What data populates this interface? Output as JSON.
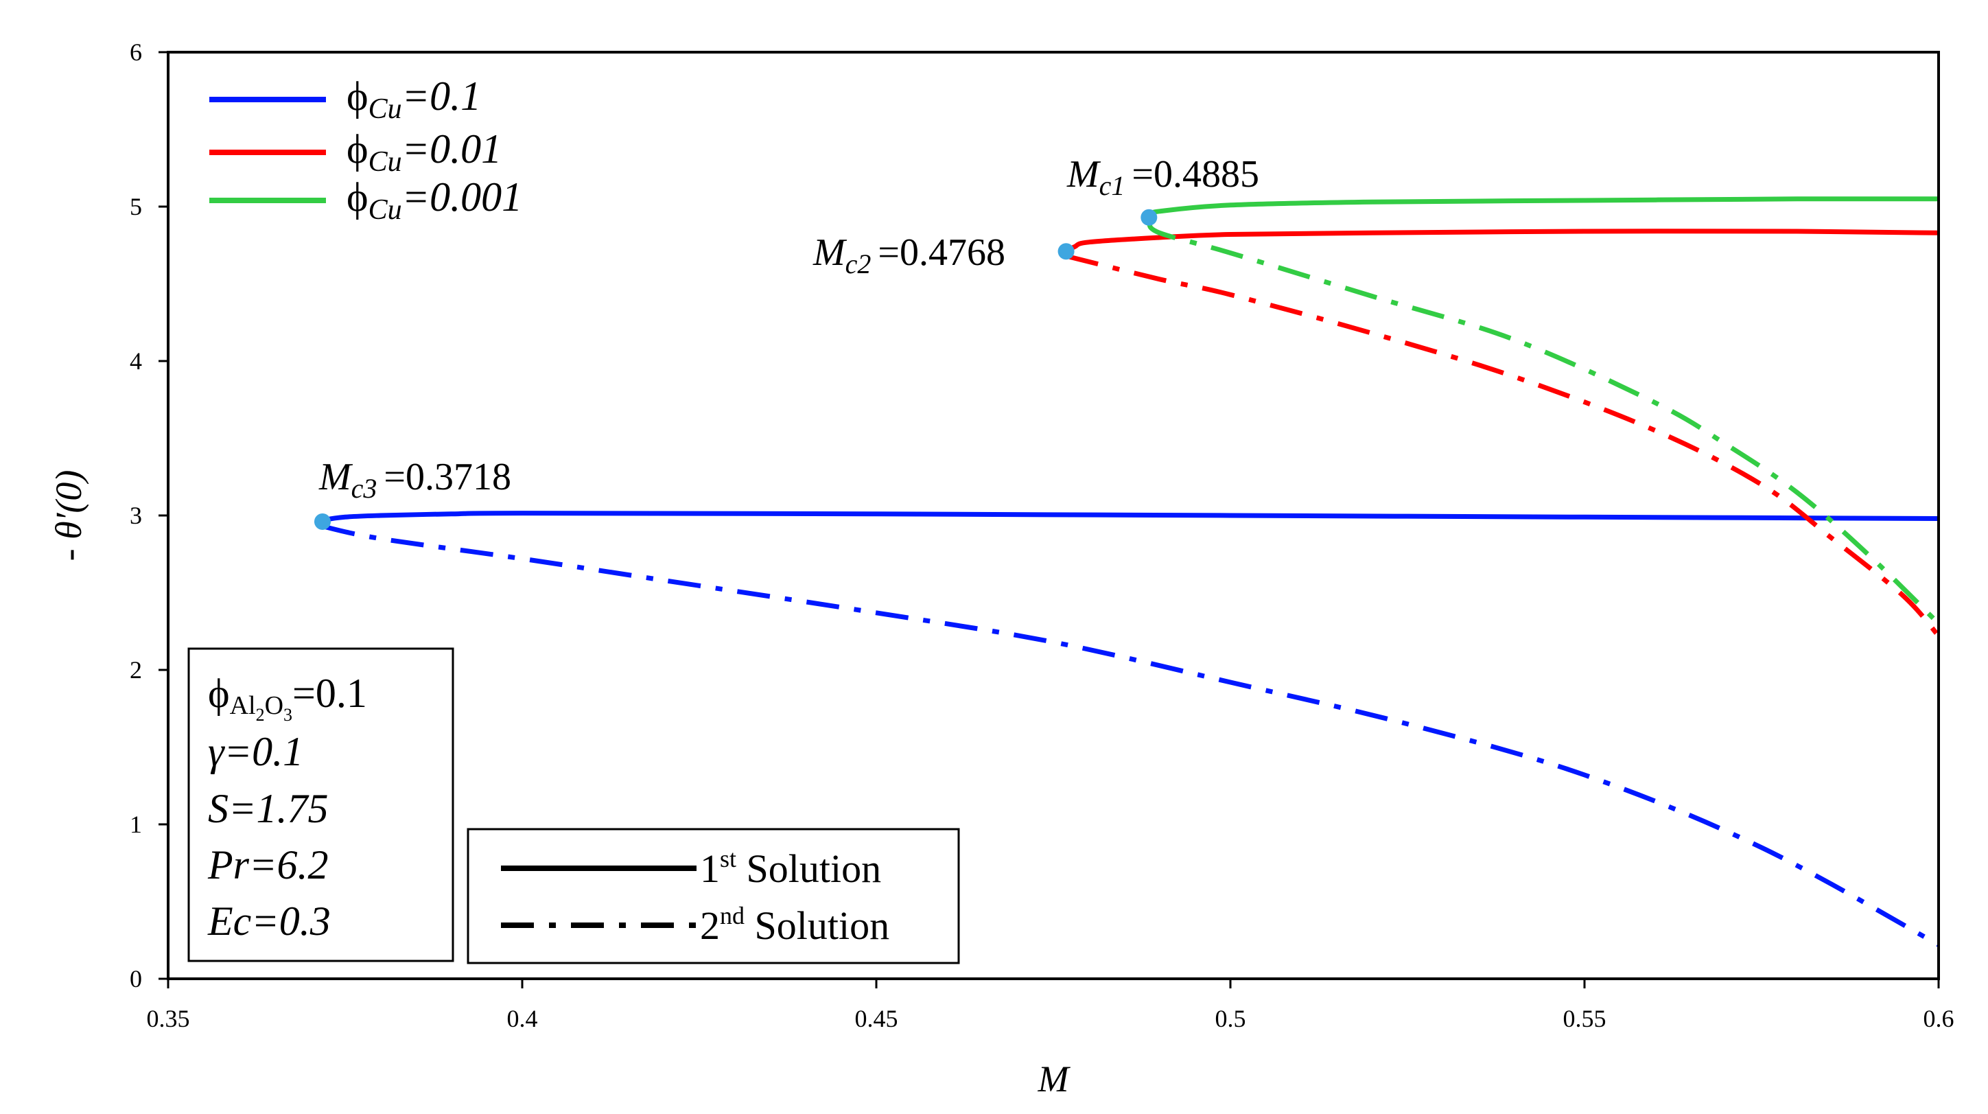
{
  "chart_data": {
    "type": "line",
    "xlabel": "M",
    "ylabel": "- θ′(0)",
    "xlim": [
      0.35,
      0.6
    ],
    "ylim": [
      0,
      6
    ],
    "xticks": [
      "0.35",
      "0.4",
      "0.45",
      "0.5",
      "0.55",
      "0.6"
    ],
    "yticks": [
      "0",
      "1",
      "2",
      "3",
      "4",
      "5",
      "6"
    ],
    "series": [
      {
        "name": "ϕCu=0.1",
        "color": "#0018ff",
        "phi_value": "0.1",
        "solution": "1st",
        "x": [
          0.3718,
          0.372,
          0.375,
          0.38,
          0.39,
          0.4,
          0.45,
          0.5,
          0.55,
          0.6
        ],
        "y": [
          2.96,
          2.97,
          2.99,
          3.0,
          3.01,
          3.015,
          3.01,
          3.0,
          2.99,
          2.98
        ]
      },
      {
        "name": "ϕCu=0.1",
        "color": "#0018ff",
        "phi_value": "0.1",
        "solution": "2nd",
        "x": [
          0.3718,
          0.38,
          0.4,
          0.42,
          0.45,
          0.475,
          0.5,
          0.525,
          0.55,
          0.575,
          0.6
        ],
        "y": [
          2.93,
          2.85,
          2.72,
          2.58,
          2.37,
          2.18,
          1.92,
          1.65,
          1.32,
          0.85,
          0.22
        ]
      },
      {
        "name": "ϕCu=0.01",
        "color": "#ff0000",
        "phi_value": "0.01",
        "solution": "1st",
        "x": [
          0.4768,
          0.478,
          0.48,
          0.49,
          0.5,
          0.52,
          0.55,
          0.58,
          0.6
        ],
        "y": [
          4.71,
          4.74,
          4.77,
          4.8,
          4.82,
          4.83,
          4.84,
          4.84,
          4.83
        ]
      },
      {
        "name": "ϕCu=0.01",
        "color": "#ff0000",
        "phi_value": "0.01",
        "solution": "2nd",
        "x": [
          0.4768,
          0.49,
          0.5,
          0.52,
          0.54,
          0.56,
          0.575,
          0.585,
          0.595,
          0.6
        ],
        "y": [
          4.68,
          4.53,
          4.43,
          4.18,
          3.9,
          3.55,
          3.2,
          2.85,
          2.48,
          2.22
        ]
      },
      {
        "name": "ϕCu=0.001",
        "color": "#33cc44",
        "phi_value": "0.001",
        "solution": "1st",
        "x": [
          0.4885,
          0.489,
          0.49,
          0.5,
          0.52,
          0.55,
          0.58,
          0.6
        ],
        "y": [
          4.93,
          4.95,
          4.97,
          5.01,
          5.03,
          5.04,
          5.05,
          5.05
        ]
      },
      {
        "name": "ϕCu=0.001",
        "color": "#33cc44",
        "phi_value": "0.001",
        "solution": "2nd",
        "x": [
          0.4885,
          0.49,
          0.5,
          0.52,
          0.54,
          0.56,
          0.57,
          0.58,
          0.59,
          0.6
        ],
        "y": [
          4.9,
          4.83,
          4.7,
          4.42,
          4.14,
          3.73,
          3.46,
          3.15,
          2.75,
          2.3
        ]
      }
    ],
    "critical_points": [
      {
        "label": "Mc1",
        "sub": "c1",
        "value": "=0.4885",
        "x": 0.4885,
        "y": 4.93
      },
      {
        "label": "Mc2",
        "sub": "c2",
        "value": "=0.4768",
        "x": 0.4768,
        "y": 4.71
      },
      {
        "label": "Mc3",
        "sub": "c3",
        "value": "=0.3718",
        "x": 0.3718,
        "y": 2.96
      }
    ],
    "marker_color": "#3ea6e0",
    "legend": {
      "placement": "top-left",
      "entries": [
        {
          "prefix": "ϕ",
          "sub": "Cu",
          "value": "=0.1",
          "color": "#0018ff"
        },
        {
          "prefix": "ϕ",
          "sub": "Cu",
          "value": "=0.01",
          "color": "#ff0000"
        },
        {
          "prefix": "ϕ",
          "sub": "Cu",
          "value": "=0.001",
          "color": "#33cc44"
        }
      ]
    },
    "solution_legend": {
      "first": {
        "num": "1",
        "sup": "st",
        "text": " Solution"
      },
      "second": {
        "num": "2",
        "sup": "nd",
        "text": " Solution"
      }
    },
    "params": {
      "phi_prefix": "ϕ",
      "phi_sub_a": "Al",
      "phi_sub_b": "2",
      "phi_sub_c": "O",
      "phi_sub_d": "3",
      "phi_value": "=0.1",
      "gamma": "γ=0.1",
      "S": "S=1.75",
      "Pr": "Pr=6.2",
      "Ec": "Ec=0.3"
    }
  }
}
